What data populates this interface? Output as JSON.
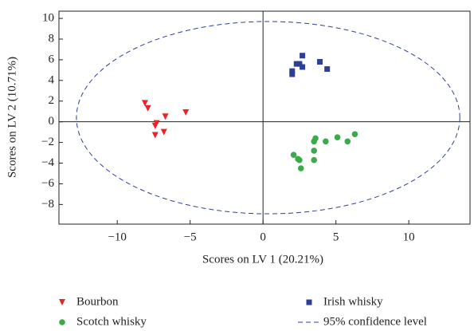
{
  "chart_data": {
    "type": "scatter",
    "xlabel": "Scores on LV 1 (20.21%)",
    "ylabel": "Scores on LV 2 (10.71%)",
    "xlim": [
      -14,
      14.2
    ],
    "ylim": [
      -9.9,
      10.7
    ],
    "xticks": [
      {
        "value": -10,
        "label": "−10"
      },
      {
        "value": -5,
        "label": "−5"
      },
      0,
      5,
      10
    ],
    "yticks": [
      {
        "value": -8,
        "label": "−8"
      },
      {
        "value": -6,
        "label": "−6"
      },
      {
        "value": -4,
        "label": "−4"
      },
      {
        "value": -2,
        "label": "−2"
      },
      0,
      2,
      4,
      6,
      8,
      10
    ],
    "zero_lines": true,
    "series": [
      {
        "name": "Bourbon",
        "color": "#e8242a",
        "marker": "triangle-down",
        "x": [
          -8.1,
          -7.9,
          -6.7,
          -5.3,
          -7.3,
          -7.4,
          -7.4,
          -6.8
        ],
        "values": [
          1.8,
          1.3,
          0.5,
          0.9,
          -0.15,
          -0.4,
          -1.3,
          -1.0
        ]
      },
      {
        "name": "Irish whisky",
        "color": "#2e3f96",
        "marker": "square",
        "x": [
          2.7,
          2.3,
          2.5,
          2.7,
          2.0,
          2.0,
          3.9,
          4.4
        ],
        "values": [
          6.4,
          5.6,
          5.6,
          5.3,
          4.9,
          4.6,
          5.8,
          5.1
        ]
      },
      {
        "name": "Scotch whisky",
        "color": "#3aab49",
        "marker": "circle",
        "x": [
          6.3,
          5.1,
          5.8,
          4.3,
          3.6,
          3.5,
          3.5,
          3.5,
          2.1,
          2.4,
          2.5,
          2.6
        ],
        "values": [
          -1.2,
          -1.5,
          -1.9,
          -1.9,
          -1.6,
          -1.9,
          -2.8,
          -3.7,
          -3.2,
          -3.6,
          -3.7,
          -4.5
        ]
      },
      {
        "name": "95% confidence level",
        "color": "#2e3f96",
        "marker": "ellipse",
        "center": [
          0.35,
          0.4
        ],
        "radii": [
          13.15,
          9.3
        ]
      }
    ]
  }
}
